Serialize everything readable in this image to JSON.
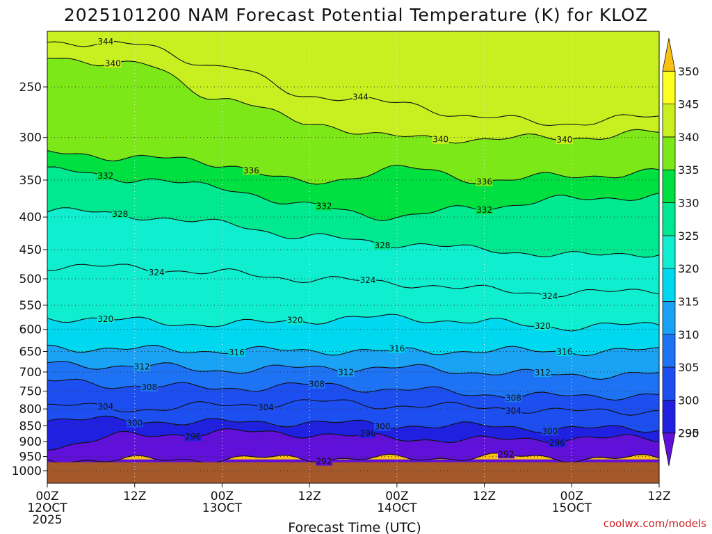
{
  "chart_data": {
    "type": "heatmap",
    "title": "2025101200 NAM Forecast Potential Temperature (K) for KLOZ",
    "xlabel": "Forecast Time (UTC)",
    "ylabel": "",
    "credit": "coolwx.com/models",
    "units": "K",
    "y_scale": "log-pressure (hPa), inverted",
    "y_ticks": [
      "250",
      "300",
      "350",
      "400",
      "450",
      "500",
      "550",
      "600",
      "650",
      "700",
      "750",
      "800",
      "850",
      "900",
      "950",
      "1000"
    ],
    "y_tick_values": [
      250,
      300,
      350,
      400,
      450,
      500,
      550,
      600,
      650,
      700,
      750,
      800,
      850,
      900,
      950,
      1000
    ],
    "ylim": [
      1000,
      200
    ],
    "x_ticks": [
      {
        "hour": 0,
        "lines": [
          "00Z",
          "12OCT",
          "2025"
        ]
      },
      {
        "hour": 12,
        "lines": [
          "12Z"
        ]
      },
      {
        "hour": 24,
        "lines": [
          "00Z",
          "13OCT"
        ]
      },
      {
        "hour": 36,
        "lines": [
          "12Z"
        ]
      },
      {
        "hour": 48,
        "lines": [
          "00Z",
          "14OCT"
        ]
      },
      {
        "hour": 60,
        "lines": [
          "12Z"
        ]
      },
      {
        "hour": 72,
        "lines": [
          "00Z",
          "15OCT"
        ]
      },
      {
        "hour": 84,
        "lines": [
          "12Z"
        ]
      }
    ],
    "xlim": [
      0,
      84
    ],
    "grid": true,
    "ground_pressure": 970,
    "colorbar": {
      "levels": [
        290,
        295,
        300,
        305,
        310,
        315,
        320,
        325,
        330,
        335,
        340,
        345,
        350
      ],
      "colors": [
        "#6010d8",
        "#2020e0",
        "#1d4ef0",
        "#1e73f5",
        "#1aa3f5",
        "#00d8f0",
        "#10eed0",
        "#00e890",
        "#00e040",
        "#7ce818",
        "#c8f020",
        "#ffff20",
        "#f8c010"
      ]
    },
    "contours": [
      {
        "value": 292,
        "label": "292",
        "pressure": [
          960,
          962,
          958,
          955,
          958,
          950,
          955,
          958
        ],
        "label_at": [
          [
            38,
            292
          ],
          [
            63,
            292
          ]
        ]
      },
      {
        "value": 296,
        "label": "296",
        "pressure": [
          915,
          880,
          870,
          875,
          890,
          895,
          890,
          890
        ],
        "label_at": [
          [
            20,
            296
          ],
          [
            44,
            296
          ],
          [
            70,
            296
          ]
        ]
      },
      {
        "value": 300,
        "label": "300",
        "pressure": [
          830,
          835,
          840,
          840,
          848,
          852,
          860,
          858
        ],
        "label_at": [
          [
            12,
            300
          ],
          [
            46,
            300
          ],
          [
            69,
            300
          ]
        ]
      },
      {
        "value": 304,
        "label": "304",
        "pressure": [
          790,
          800,
          790,
          780,
          790,
          795,
          808,
          805
        ],
        "label_at": [
          [
            8,
            304
          ],
          [
            30,
            304
          ],
          [
            64,
            304
          ]
        ]
      },
      {
        "value": 308,
        "label": "308",
        "pressure": [
          725,
          735,
          742,
          735,
          745,
          758,
          765,
          760
        ],
        "label_at": [
          [
            14,
            308
          ],
          [
            37,
            308
          ],
          [
            64,
            308
          ]
        ]
      },
      {
        "value": 312,
        "label": "312",
        "pressure": [
          680,
          685,
          695,
          690,
          690,
          700,
          708,
          705
        ],
        "label_at": [
          [
            13,
            312
          ],
          [
            41,
            312
          ],
          [
            68,
            312
          ]
        ]
      },
      {
        "value": 316,
        "label": "316",
        "pressure": [
          640,
          645,
          648,
          648,
          650,
          648,
          650,
          648
        ],
        "label_at": [
          [
            26,
            316
          ],
          [
            48,
            316
          ],
          [
            71,
            316
          ]
        ]
      },
      {
        "value": 320,
        "label": "320",
        "pressure": [
          575,
          582,
          590,
          580,
          575,
          585,
          595,
          590
        ],
        "label_at": [
          [
            8,
            320
          ],
          [
            34,
            320
          ],
          [
            68,
            320
          ]
        ]
      },
      {
        "value": 324,
        "label": "324",
        "pressure": [
          478,
          480,
          490,
          500,
          508,
          520,
          528,
          520
        ],
        "label_at": [
          [
            15,
            324
          ],
          [
            44,
            324
          ],
          [
            69,
            324
          ]
        ]
      },
      {
        "value": 328,
        "label": "328",
        "pressure": [
          390,
          398,
          410,
          430,
          440,
          450,
          460,
          455
        ],
        "label_at": [
          [
            10,
            328
          ],
          [
            46,
            328
          ]
        ]
      },
      {
        "value": 332,
        "label": "332",
        "pressure": [
          338,
          348,
          360,
          385,
          400,
          385,
          375,
          370
        ],
        "label_at": [
          [
            8,
            332
          ],
          [
            38,
            332
          ],
          [
            60,
            332
          ]
        ]
      },
      {
        "value": 336,
        "label": "336",
        "pressure": [
          318,
          322,
          330,
          355,
          335,
          350,
          345,
          340
        ],
        "label_at": [
          [
            28,
            336
          ],
          [
            60,
            336
          ]
        ]
      },
      {
        "value": 340,
        "label": "340",
        "pressure": [
          225,
          230,
          260,
          285,
          300,
          302,
          300,
          295
        ],
        "label_at": [
          [
            9,
            340
          ],
          [
            54,
            340
          ],
          [
            71,
            340
          ]
        ]
      },
      {
        "value": 344,
        "label": "344",
        "pressure": [
          212,
          215,
          232,
          258,
          265,
          280,
          285,
          278
        ],
        "label_at": [
          [
            8,
            344
          ],
          [
            43,
            344
          ]
        ]
      }
    ]
  }
}
